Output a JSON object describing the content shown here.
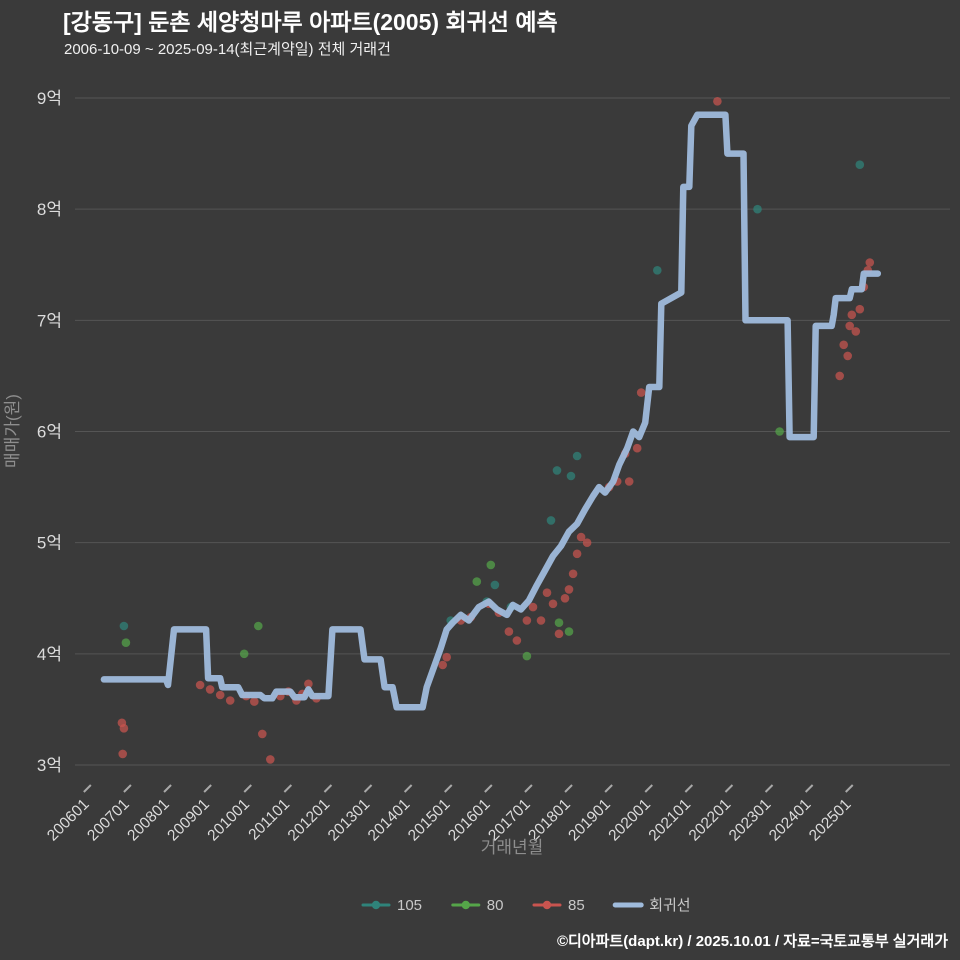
{
  "footer": {
    "credit": "©디아파트(dapt.kr) / 2025.10.01 / 자료=국토교통부 실거래가"
  },
  "colors": {
    "background": "#3a3a3a",
    "grid": "#555555",
    "tick_label": "#dcdcdc",
    "axis_title": "#8e8e8e",
    "legend_text": "#c8c8c8",
    "title": "#ffffff",
    "subtitle": "#f0f0f0",
    "footer": "#ffffff",
    "tick_mark": "#a8a8a8"
  },
  "chart_data": {
    "type": "scatter",
    "title": "[강동구] 둔촌 세양청마루 아파트(2005) 회귀선 예측",
    "subtitle": "2006-10-09 ~ 2025-09-14(최근계약일) 전체 거래건",
    "xlabel": "거래년월",
    "ylabel": "매매가(원)",
    "unit": "억원",
    "grid": "horizontal",
    "legend_position": "bottom-center",
    "x_range": [
      2005.68,
      2027.5
    ],
    "y_range": [
      3,
      9
    ],
    "x_ticks": [
      {
        "value": 2006,
        "label": "200601"
      },
      {
        "value": 2007,
        "label": "200701"
      },
      {
        "value": 2008,
        "label": "200801"
      },
      {
        "value": 2009,
        "label": "200901"
      },
      {
        "value": 2010,
        "label": "201001"
      },
      {
        "value": 2011,
        "label": "201101"
      },
      {
        "value": 2012,
        "label": "201201"
      },
      {
        "value": 2013,
        "label": "201301"
      },
      {
        "value": 2014,
        "label": "201401"
      },
      {
        "value": 2015,
        "label": "201501"
      },
      {
        "value": 2016,
        "label": "201601"
      },
      {
        "value": 2017,
        "label": "201701"
      },
      {
        "value": 2018,
        "label": "201801"
      },
      {
        "value": 2019,
        "label": "201901"
      },
      {
        "value": 2020,
        "label": "202001"
      },
      {
        "value": 2021,
        "label": "202101"
      },
      {
        "value": 2022,
        "label": "202201"
      },
      {
        "value": 2023,
        "label": "202301"
      },
      {
        "value": 2024,
        "label": "202401"
      },
      {
        "value": 2025,
        "label": "202501"
      }
    ],
    "y_ticks": [
      {
        "value": 3,
        "label": "3억"
      },
      {
        "value": 4,
        "label": "4억"
      },
      {
        "value": 5,
        "label": "5억"
      },
      {
        "value": 6,
        "label": "6억"
      },
      {
        "value": 7,
        "label": "7억"
      },
      {
        "value": 8,
        "label": "8억"
      },
      {
        "value": 9,
        "label": "9억"
      }
    ],
    "series": [
      {
        "name": "105",
        "type": "scatter",
        "color": "#2f837a",
        "marker_size": 8,
        "points": [
          [
            2006.9,
            4.25
          ],
          [
            2015.05,
            4.3
          ],
          [
            2015.95,
            4.47
          ],
          [
            2016.15,
            4.62
          ],
          [
            2016.55,
            4.42
          ],
          [
            2017.55,
            5.2
          ],
          [
            2017.7,
            5.65
          ],
          [
            2018.05,
            5.6
          ],
          [
            2018.2,
            5.78
          ],
          [
            2020.2,
            7.45
          ],
          [
            2022.7,
            8.0
          ],
          [
            2025.25,
            8.4
          ]
        ]
      },
      {
        "name": "80",
        "type": "scatter",
        "color": "#55a549",
        "marker_size": 8,
        "points": [
          [
            2006.95,
            4.1
          ],
          [
            2009.9,
            4.0
          ],
          [
            2010.25,
            4.25
          ],
          [
            2015.7,
            4.65
          ],
          [
            2016.05,
            4.8
          ],
          [
            2016.95,
            3.98
          ],
          [
            2017.75,
            4.28
          ],
          [
            2018.0,
            4.2
          ],
          [
            2023.25,
            6.0
          ]
        ]
      },
      {
        "name": "85",
        "type": "scatter",
        "color": "#c9544f",
        "marker_size": 8,
        "points": [
          [
            2006.85,
            3.38
          ],
          [
            2006.9,
            3.33
          ],
          [
            2006.87,
            3.1
          ],
          [
            2008.8,
            3.72
          ],
          [
            2009.05,
            3.68
          ],
          [
            2009.3,
            3.63
          ],
          [
            2009.55,
            3.58
          ],
          [
            2009.95,
            3.62
          ],
          [
            2010.15,
            3.57
          ],
          [
            2010.35,
            3.28
          ],
          [
            2010.55,
            3.05
          ],
          [
            2010.8,
            3.62
          ],
          [
            2011.0,
            3.66
          ],
          [
            2011.2,
            3.58
          ],
          [
            2011.35,
            3.64
          ],
          [
            2011.5,
            3.73
          ],
          [
            2011.7,
            3.6
          ],
          [
            2014.85,
            3.9
          ],
          [
            2014.95,
            3.97
          ],
          [
            2015.3,
            4.3
          ],
          [
            2015.55,
            4.33
          ],
          [
            2016.0,
            4.45
          ],
          [
            2016.25,
            4.37
          ],
          [
            2016.5,
            4.2
          ],
          [
            2016.7,
            4.12
          ],
          [
            2016.95,
            4.3
          ],
          [
            2017.1,
            4.42
          ],
          [
            2017.3,
            4.3
          ],
          [
            2017.45,
            4.55
          ],
          [
            2017.6,
            4.45
          ],
          [
            2017.75,
            4.18
          ],
          [
            2017.9,
            4.5
          ],
          [
            2018.0,
            4.58
          ],
          [
            2018.1,
            4.72
          ],
          [
            2018.2,
            4.9
          ],
          [
            2018.3,
            5.05
          ],
          [
            2018.45,
            5.0
          ],
          [
            2019.0,
            5.5
          ],
          [
            2019.2,
            5.55
          ],
          [
            2019.4,
            5.8
          ],
          [
            2019.5,
            5.55
          ],
          [
            2019.7,
            5.85
          ],
          [
            2019.8,
            6.35
          ],
          [
            2021.7,
            8.97
          ],
          [
            2024.75,
            6.5
          ],
          [
            2024.85,
            6.78
          ],
          [
            2024.95,
            6.68
          ],
          [
            2025.0,
            6.95
          ],
          [
            2025.05,
            7.05
          ],
          [
            2025.15,
            6.9
          ],
          [
            2025.25,
            7.1
          ],
          [
            2025.35,
            7.3
          ],
          [
            2025.45,
            7.45
          ],
          [
            2025.5,
            7.52
          ]
        ]
      },
      {
        "name": "회귀선",
        "type": "line",
        "color": "#9fbbdc",
        "width": 6.5,
        "points": [
          [
            2006.4,
            3.77
          ],
          [
            2007.95,
            3.77
          ],
          [
            2008.0,
            3.72
          ],
          [
            2008.15,
            4.22
          ],
          [
            2008.95,
            4.22
          ],
          [
            2009.0,
            3.78
          ],
          [
            2009.3,
            3.78
          ],
          [
            2009.35,
            3.7
          ],
          [
            2009.75,
            3.7
          ],
          [
            2009.85,
            3.63
          ],
          [
            2010.3,
            3.63
          ],
          [
            2010.4,
            3.6
          ],
          [
            2010.6,
            3.6
          ],
          [
            2010.7,
            3.66
          ],
          [
            2011.05,
            3.66
          ],
          [
            2011.15,
            3.61
          ],
          [
            2011.4,
            3.61
          ],
          [
            2011.5,
            3.68
          ],
          [
            2011.6,
            3.62
          ],
          [
            2012.0,
            3.62
          ],
          [
            2012.1,
            4.22
          ],
          [
            2012.8,
            4.22
          ],
          [
            2012.9,
            3.95
          ],
          [
            2013.3,
            3.95
          ],
          [
            2013.4,
            3.7
          ],
          [
            2013.6,
            3.7
          ],
          [
            2013.7,
            3.52
          ],
          [
            2014.35,
            3.52
          ],
          [
            2014.45,
            3.7
          ],
          [
            2014.6,
            3.85
          ],
          [
            2014.8,
            4.05
          ],
          [
            2014.95,
            4.22
          ],
          [
            2015.1,
            4.28
          ],
          [
            2015.3,
            4.35
          ],
          [
            2015.5,
            4.3
          ],
          [
            2015.75,
            4.42
          ],
          [
            2016.0,
            4.47
          ],
          [
            2016.2,
            4.4
          ],
          [
            2016.45,
            4.35
          ],
          [
            2016.6,
            4.44
          ],
          [
            2016.8,
            4.4
          ],
          [
            2017.0,
            4.48
          ],
          [
            2017.2,
            4.62
          ],
          [
            2017.4,
            4.75
          ],
          [
            2017.6,
            4.88
          ],
          [
            2017.8,
            4.97
          ],
          [
            2018.0,
            5.1
          ],
          [
            2018.2,
            5.17
          ],
          [
            2018.4,
            5.3
          ],
          [
            2018.6,
            5.42
          ],
          [
            2018.75,
            5.5
          ],
          [
            2018.9,
            5.45
          ],
          [
            2019.1,
            5.55
          ],
          [
            2019.25,
            5.7
          ],
          [
            2019.45,
            5.85
          ],
          [
            2019.6,
            6.0
          ],
          [
            2019.75,
            5.95
          ],
          [
            2019.9,
            6.08
          ],
          [
            2020.0,
            6.4
          ],
          [
            2020.25,
            6.4
          ],
          [
            2020.3,
            7.15
          ],
          [
            2020.8,
            7.25
          ],
          [
            2020.85,
            8.2
          ],
          [
            2021.0,
            8.2
          ],
          [
            2021.05,
            8.75
          ],
          [
            2021.2,
            8.85
          ],
          [
            2021.9,
            8.85
          ],
          [
            2021.95,
            8.5
          ],
          [
            2022.35,
            8.5
          ],
          [
            2022.4,
            7.0
          ],
          [
            2023.45,
            7.0
          ],
          [
            2023.5,
            5.95
          ],
          [
            2024.1,
            5.95
          ],
          [
            2024.15,
            6.95
          ],
          [
            2024.55,
            6.95
          ],
          [
            2024.6,
            7.05
          ],
          [
            2024.65,
            7.2
          ],
          [
            2025.0,
            7.2
          ],
          [
            2025.05,
            7.28
          ],
          [
            2025.3,
            7.28
          ],
          [
            2025.35,
            7.42
          ],
          [
            2025.7,
            7.42
          ]
        ]
      }
    ]
  }
}
